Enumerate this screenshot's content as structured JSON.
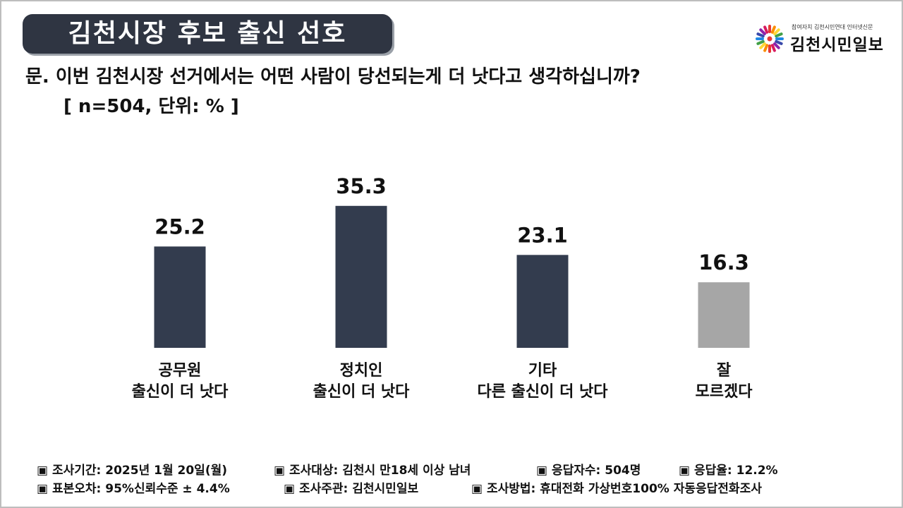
{
  "header": {
    "title": "김천시장 후보 출신 선호",
    "question": "문. 이번 김천시장 선거에서는 어떤 사람이 당선되는게 더 낫다고 생각하십니까?",
    "subtitle": "[ n=504, 단위: % ]"
  },
  "logo": {
    "tagline": "참여자치 김천시민연대  인터넷신문",
    "name": "김천시민일보"
  },
  "chart_data": {
    "type": "bar",
    "categories": [
      [
        "공무원",
        "출신이 더 낫다"
      ],
      [
        "정치인",
        "출신이 더 낫다"
      ],
      [
        "기타",
        "다른 출신이 더 낫다"
      ],
      [
        "잘",
        "모르겠다"
      ]
    ],
    "values": [
      25.2,
      35.3,
      23.1,
      16.3
    ],
    "value_labels": [
      "25.2",
      "35.3",
      "23.1",
      "16.3"
    ],
    "bar_colors": [
      "#333c4e",
      "#333c4e",
      "#333c4e",
      "#a6a6a6"
    ],
    "title": "",
    "xlabel": "",
    "ylabel": "",
    "ylim": [
      0,
      40
    ],
    "grid": false,
    "legend": "none"
  },
  "footer": {
    "row1": [
      "▣ 조사기간: 2025년 1월 20일(월)",
      "▣ 조사대상: 김천시 만18세 이상 남녀",
      "▣ 응답자수: 504명",
      "▣ 응답율: 12.2%"
    ],
    "row2": [
      "▣ 표본오차: 95%신뢰수준 ± 4.4%",
      "▣ 조사주관: 김천시민일보",
      "▣ 조사방법: 휴대전화 가상번호100% 자동응답전화조사"
    ]
  }
}
